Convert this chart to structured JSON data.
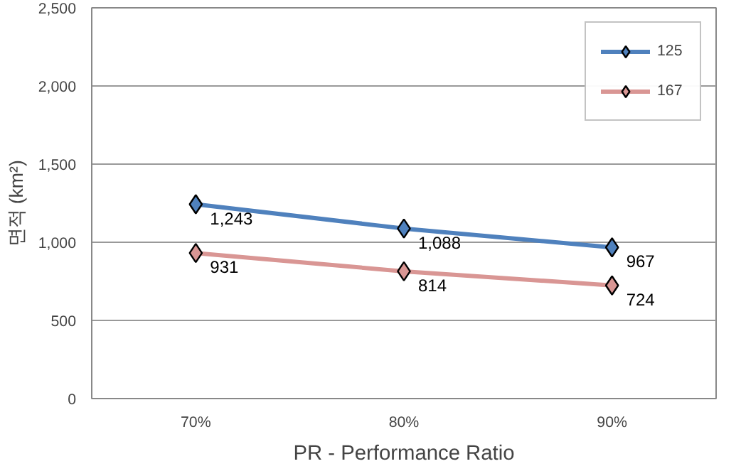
{
  "chart_data": {
    "type": "line",
    "xlabel": "PR - Performance Ratio",
    "ylabel": "면적 (km²)",
    "categories": [
      "70%",
      "80%",
      "90%"
    ],
    "series": [
      {
        "name": "125",
        "color": "#4f81bd",
        "values": [
          1243,
          1088,
          967
        ],
        "value_labels": [
          "1,243",
          "1,088",
          "967"
        ]
      },
      {
        "name": "167",
        "color": "#d99694",
        "values": [
          931,
          814,
          724
        ],
        "value_labels": [
          "931",
          "814",
          "724"
        ]
      }
    ],
    "ylim": [
      0,
      2500
    ],
    "yticks": [
      0,
      {
        "value": 500,
        "label": "500"
      },
      {
        "value": 1000,
        "label": "1,000"
      },
      {
        "value": 1500,
        "label": "1,500"
      },
      {
        "value": 2000,
        "label": "2,000"
      },
      {
        "value": 2500,
        "label": "2,500"
      }
    ],
    "grid": "y",
    "legend": "top right",
    "marker": "diamond",
    "line_style": "solid"
  }
}
